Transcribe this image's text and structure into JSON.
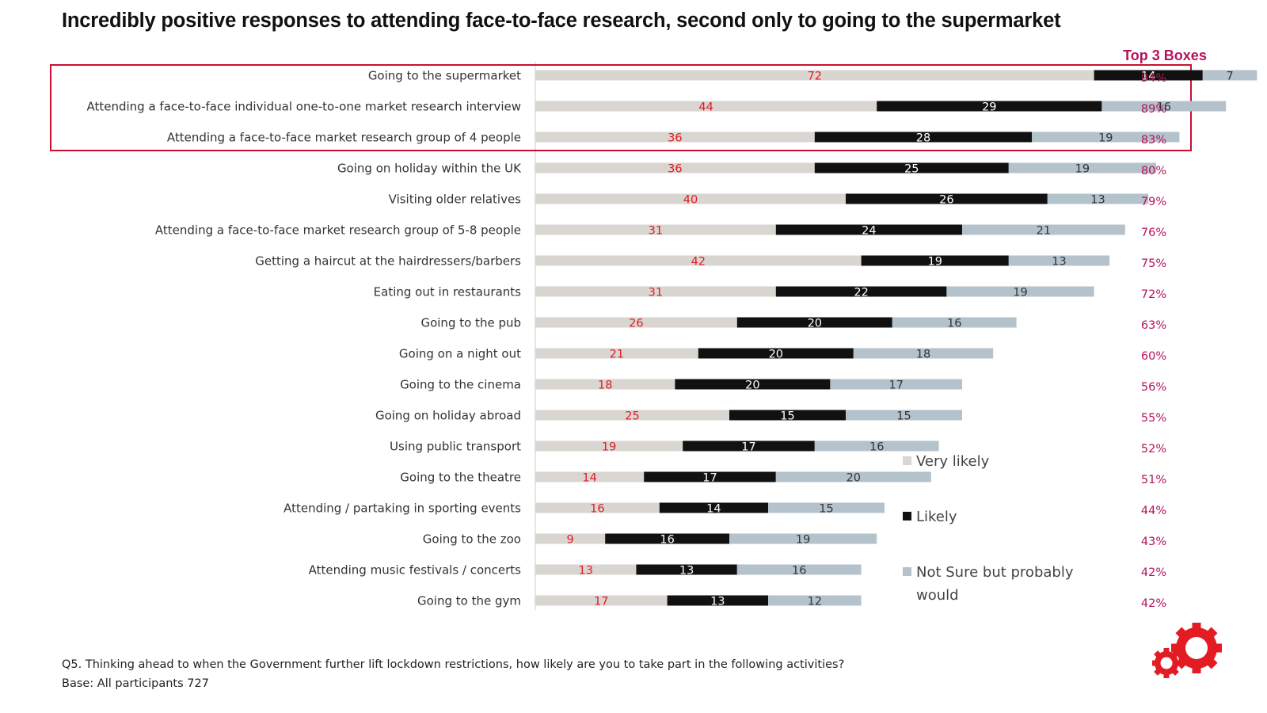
{
  "title": "Incredibly positive responses to attending face-to-face research, second only to going to the supermarket",
  "top3_header": "Top 3 Boxes",
  "footer": {
    "question": "Q5. Thinking ahead to when the Government further lift lockdown restrictions, how likely are you to take part in the following activities?",
    "base": "Base: All participants 727"
  },
  "colors": {
    "very_likely": "#d9d5d0",
    "likely": "#111111",
    "not_sure": "#b4c2cc",
    "red_label": "#e31b23",
    "top3_text": "#b5125c",
    "highlight_box": "#c8102e",
    "logo": "#e31b23"
  },
  "chart_data": {
    "type": "bar",
    "orientation": "horizontal",
    "stacked": true,
    "categories": [
      "Going to the supermarket",
      "Attending a face-to-face individual one-to-one market research interview",
      "Attending a face-to-face market research group of 4 people",
      "Going on holiday within the UK",
      "Visiting older relatives",
      "Attending a face-to-face market research group of 5-8 people",
      "Getting a haircut at the hairdressers/barbers",
      "Eating out in restaurants",
      "Going to the pub",
      "Going on a night out",
      "Going to the cinema",
      "Going on holiday abroad",
      "Using public transport",
      "Going to the theatre",
      "Attending / partaking in sporting events",
      "Going to the zoo",
      "Attending music festivals / concerts",
      "Going to the gym"
    ],
    "series": [
      {
        "name": "Very likely",
        "values": [
          72,
          44,
          36,
          36,
          40,
          31,
          42,
          31,
          26,
          21,
          18,
          25,
          19,
          14,
          16,
          9,
          13,
          17
        ]
      },
      {
        "name": "Likely",
        "values": [
          14,
          29,
          28,
          25,
          26,
          24,
          19,
          22,
          20,
          20,
          20,
          15,
          17,
          17,
          14,
          16,
          13,
          13
        ]
      },
      {
        "name": "Not Sure but probably would",
        "values": [
          7,
          16,
          19,
          19,
          13,
          21,
          13,
          19,
          16,
          18,
          17,
          15,
          16,
          20,
          15,
          19,
          16,
          12
        ]
      }
    ],
    "top3_boxes": [
      "94%",
      "89%",
      "83%",
      "80%",
      "79%",
      "76%",
      "75%",
      "72%",
      "63%",
      "60%",
      "56%",
      "55%",
      "52%",
      "51%",
      "44%",
      "43%",
      "42%",
      "42%"
    ],
    "legend": {
      "position": "right",
      "items": [
        {
          "label": "Very likely"
        },
        {
          "label_lines": [
            "Likely"
          ]
        },
        {
          "label_lines": [
            "Not Sure but probably",
            "would"
          ]
        }
      ]
    },
    "highlighted_rows": [
      0,
      1,
      2
    ],
    "xlim": [
      0,
      100
    ],
    "grid": false
  }
}
